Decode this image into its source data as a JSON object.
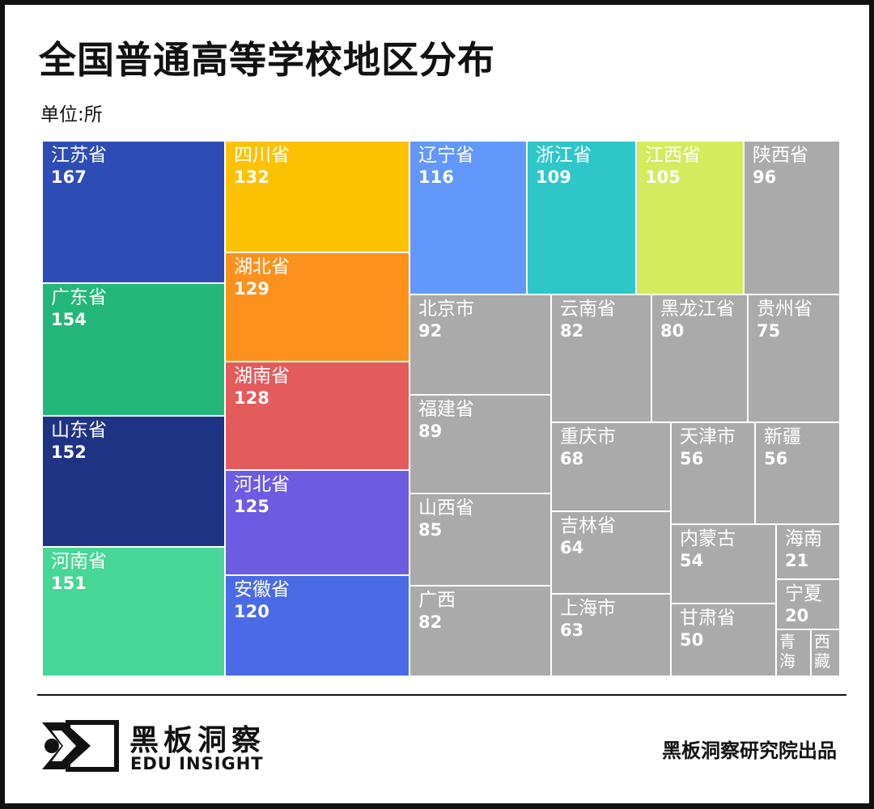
{
  "title": "全国普通高等学校地区分布",
  "unit": "单位:所",
  "footer": {
    "brand_cn": "黑板洞察",
    "brand_en": "EDU INSIGHT",
    "credit": "黑板洞察研究院出品"
  },
  "chart_data": {
    "type": "treemap",
    "unit": "所",
    "items": [
      {
        "name": "江苏省",
        "value": 167,
        "color": "#2D4CB5"
      },
      {
        "name": "广东省",
        "value": 154,
        "color": "#23B67A"
      },
      {
        "name": "山东省",
        "value": 152,
        "color": "#1F3385"
      },
      {
        "name": "河南省",
        "value": 151,
        "color": "#46D696"
      },
      {
        "name": "四川省",
        "value": 132,
        "color": "#FCC202"
      },
      {
        "name": "湖北省",
        "value": 129,
        "color": "#FC911E"
      },
      {
        "name": "湖南省",
        "value": 128,
        "color": "#E35B5B"
      },
      {
        "name": "河北省",
        "value": 125,
        "color": "#6D5BE2"
      },
      {
        "name": "安徽省",
        "value": 120,
        "color": "#4A6BE6"
      },
      {
        "name": "辽宁省",
        "value": 116,
        "color": "#6297FB"
      },
      {
        "name": "浙江省",
        "value": 109,
        "color": "#2FC6C9"
      },
      {
        "name": "江西省",
        "value": 105,
        "color": "#D3EB5C"
      },
      {
        "name": "陕西省",
        "value": 96,
        "color": "#AAAAAA"
      },
      {
        "name": "北京市",
        "value": 92,
        "color": "#AAAAAA"
      },
      {
        "name": "福建省",
        "value": 89,
        "color": "#AAAAAA"
      },
      {
        "name": "山西省",
        "value": 85,
        "color": "#AAAAAA"
      },
      {
        "name": "广西",
        "value": 82,
        "color": "#AAAAAA"
      },
      {
        "name": "云南省",
        "value": 82,
        "color": "#AAAAAA"
      },
      {
        "name": "黑龙江省",
        "value": 80,
        "color": "#AAAAAA"
      },
      {
        "name": "贵州省",
        "value": 75,
        "color": "#AAAAAA"
      },
      {
        "name": "重庆市",
        "value": 68,
        "color": "#AAAAAA"
      },
      {
        "name": "吉林省",
        "value": 64,
        "color": "#AAAAAA"
      },
      {
        "name": "上海市",
        "value": 63,
        "color": "#AAAAAA"
      },
      {
        "name": "天津市",
        "value": 56,
        "color": "#AAAAAA"
      },
      {
        "name": "新疆",
        "value": 56,
        "color": "#AAAAAA"
      },
      {
        "name": "内蒙古",
        "value": 54,
        "color": "#AAAAAA"
      },
      {
        "name": "甘肃省",
        "value": 50,
        "color": "#AAAAAA"
      },
      {
        "name": "海南",
        "value": 21,
        "color": "#AAAAAA"
      },
      {
        "name": "宁夏",
        "value": 20,
        "color": "#AAAAAA"
      },
      {
        "name": "青海",
        "value": null,
        "color": "#AAAAAA"
      },
      {
        "name": "西藏",
        "value": null,
        "color": "#AAAAAA"
      }
    ]
  }
}
